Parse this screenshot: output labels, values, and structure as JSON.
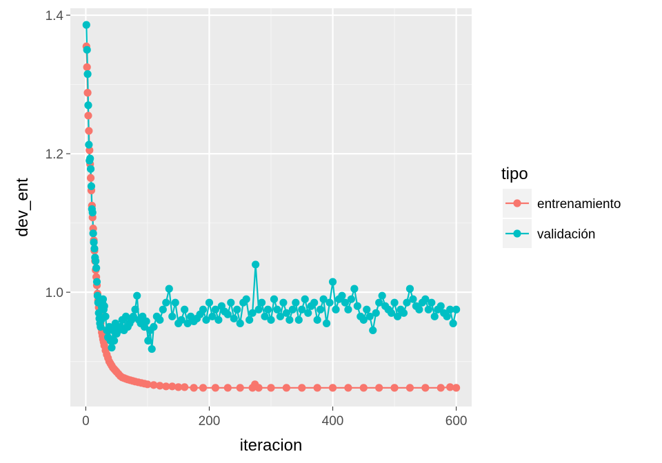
{
  "chart_data": {
    "type": "line",
    "title": "",
    "xlabel": "iteracion",
    "ylabel": "dev_ent",
    "xlim": [
      -25,
      625
    ],
    "ylim": [
      0.835,
      1.41
    ],
    "x_ticks": [
      0,
      200,
      400,
      600
    ],
    "x_tick_labels": [
      "0",
      "200",
      "400",
      "600"
    ],
    "y_ticks": [
      1.0,
      1.2,
      1.4
    ],
    "y_tick_labels": [
      "1.0",
      "1.2",
      "1.4"
    ],
    "grid": true,
    "background": "#ebebeb",
    "legend": {
      "title": "tipo",
      "placement": "right"
    },
    "series": [
      {
        "name": "entrenamiento",
        "color": "#f8766d",
        "x": [
          1,
          2,
          3,
          4,
          5,
          6,
          7,
          8,
          9,
          10,
          11,
          12,
          13,
          14,
          15,
          16,
          17,
          18,
          19,
          20,
          21,
          22,
          23,
          24,
          25,
          26,
          27,
          28,
          29,
          30,
          32,
          34,
          36,
          38,
          40,
          42,
          44,
          46,
          48,
          50,
          53,
          56,
          59,
          62,
          65,
          68,
          72,
          76,
          80,
          85,
          90,
          95,
          100,
          110,
          120,
          130,
          140,
          150,
          160,
          175,
          190,
          210,
          230,
          250,
          270,
          274,
          280,
          300,
          325,
          350,
          375,
          400,
          425,
          450,
          475,
          500,
          525,
          550,
          575,
          590,
          600
        ],
        "values": [
          1.355,
          1.325,
          1.288,
          1.255,
          1.233,
          1.205,
          1.185,
          1.165,
          1.147,
          1.125,
          1.108,
          1.092,
          1.075,
          1.06,
          1.045,
          1.032,
          1.022,
          1.01,
          0.998,
          0.988,
          0.978,
          0.97,
          0.962,
          0.955,
          0.948,
          0.942,
          0.937,
          0.932,
          0.928,
          0.923,
          0.916,
          0.91,
          0.905,
          0.9,
          0.897,
          0.894,
          0.891,
          0.889,
          0.887,
          0.885,
          0.882,
          0.879,
          0.877,
          0.876,
          0.875,
          0.874,
          0.873,
          0.872,
          0.871,
          0.87,
          0.869,
          0.868,
          0.867,
          0.866,
          0.865,
          0.864,
          0.864,
          0.863,
          0.863,
          0.862,
          0.862,
          0.862,
          0.862,
          0.862,
          0.862,
          0.867,
          0.862,
          0.862,
          0.862,
          0.862,
          0.862,
          0.862,
          0.862,
          0.862,
          0.862,
          0.862,
          0.862,
          0.862,
          0.862,
          0.863,
          0.862
        ]
      },
      {
        "name": "validación",
        "color": "#00bfc4",
        "x": [
          1,
          2,
          3,
          4,
          5,
          6,
          7,
          8,
          9,
          10,
          11,
          12,
          13,
          14,
          15,
          16,
          17,
          18,
          19,
          20,
          21,
          22,
          23,
          24,
          25,
          26,
          27,
          28,
          29,
          30,
          32,
          34,
          36,
          38,
          40,
          42,
          44,
          46,
          48,
          50,
          53,
          56,
          59,
          62,
          65,
          68,
          71,
          74,
          77,
          80,
          83,
          86,
          89,
          92,
          95,
          98,
          101,
          104,
          107,
          110,
          115,
          120,
          125,
          130,
          135,
          140,
          145,
          150,
          155,
          160,
          165,
          170,
          175,
          180,
          185,
          190,
          195,
          200,
          205,
          210,
          215,
          220,
          225,
          230,
          235,
          240,
          245,
          250,
          255,
          260,
          265,
          270,
          275,
          280,
          285,
          290,
          295,
          300,
          305,
          310,
          315,
          320,
          325,
          330,
          335,
          340,
          345,
          350,
          355,
          360,
          365,
          370,
          375,
          380,
          385,
          390,
          395,
          400,
          405,
          410,
          415,
          420,
          425,
          430,
          435,
          440,
          445,
          450,
          455,
          460,
          465,
          470,
          475,
          480,
          485,
          490,
          495,
          500,
          505,
          510,
          515,
          520,
          525,
          530,
          535,
          540,
          545,
          550,
          555,
          560,
          565,
          570,
          575,
          580,
          585,
          590,
          595,
          600
        ],
        "values": [
          1.386,
          1.35,
          1.315,
          1.27,
          1.213,
          1.19,
          1.193,
          1.178,
          1.153,
          1.12,
          1.115,
          1.085,
          1.072,
          1.063,
          1.05,
          1.045,
          1.035,
          1.015,
          0.995,
          0.985,
          0.97,
          0.962,
          0.955,
          0.95,
          0.96,
          0.978,
          0.985,
          0.99,
          0.975,
          0.98,
          0.965,
          0.945,
          0.935,
          0.95,
          0.93,
          0.92,
          0.945,
          0.93,
          0.955,
          0.94,
          0.945,
          0.95,
          0.96,
          0.945,
          0.965,
          0.95,
          0.955,
          0.96,
          0.965,
          0.975,
          0.995,
          0.96,
          0.955,
          0.965,
          0.95,
          0.958,
          0.93,
          0.945,
          0.918,
          0.95,
          0.965,
          0.96,
          0.975,
          0.985,
          1.005,
          0.965,
          0.985,
          0.955,
          0.96,
          0.975,
          0.955,
          0.965,
          0.958,
          0.962,
          0.968,
          0.975,
          0.96,
          0.985,
          0.965,
          0.975,
          0.96,
          0.98,
          0.972,
          0.968,
          0.985,
          0.962,
          0.975,
          0.955,
          0.985,
          0.99,
          0.96,
          0.97,
          1.04,
          0.975,
          0.985,
          0.965,
          0.975,
          0.96,
          0.99,
          0.975,
          0.965,
          0.985,
          0.97,
          0.96,
          0.975,
          0.985,
          0.96,
          0.975,
          0.99,
          0.97,
          0.98,
          0.985,
          0.96,
          0.975,
          0.99,
          0.955,
          0.985,
          1.015,
          0.975,
          0.99,
          0.995,
          0.985,
          0.975,
          0.99,
          1.005,
          0.98,
          0.965,
          0.96,
          0.975,
          0.965,
          0.945,
          0.97,
          0.985,
          0.995,
          0.98,
          0.975,
          0.97,
          0.985,
          0.965,
          0.975,
          0.97,
          0.985,
          1.005,
          0.99,
          0.98,
          0.975,
          0.985,
          0.99,
          0.975,
          0.985,
          0.965,
          0.975,
          0.98,
          0.97,
          0.965,
          0.975,
          0.955,
          0.975
        ]
      }
    ]
  }
}
